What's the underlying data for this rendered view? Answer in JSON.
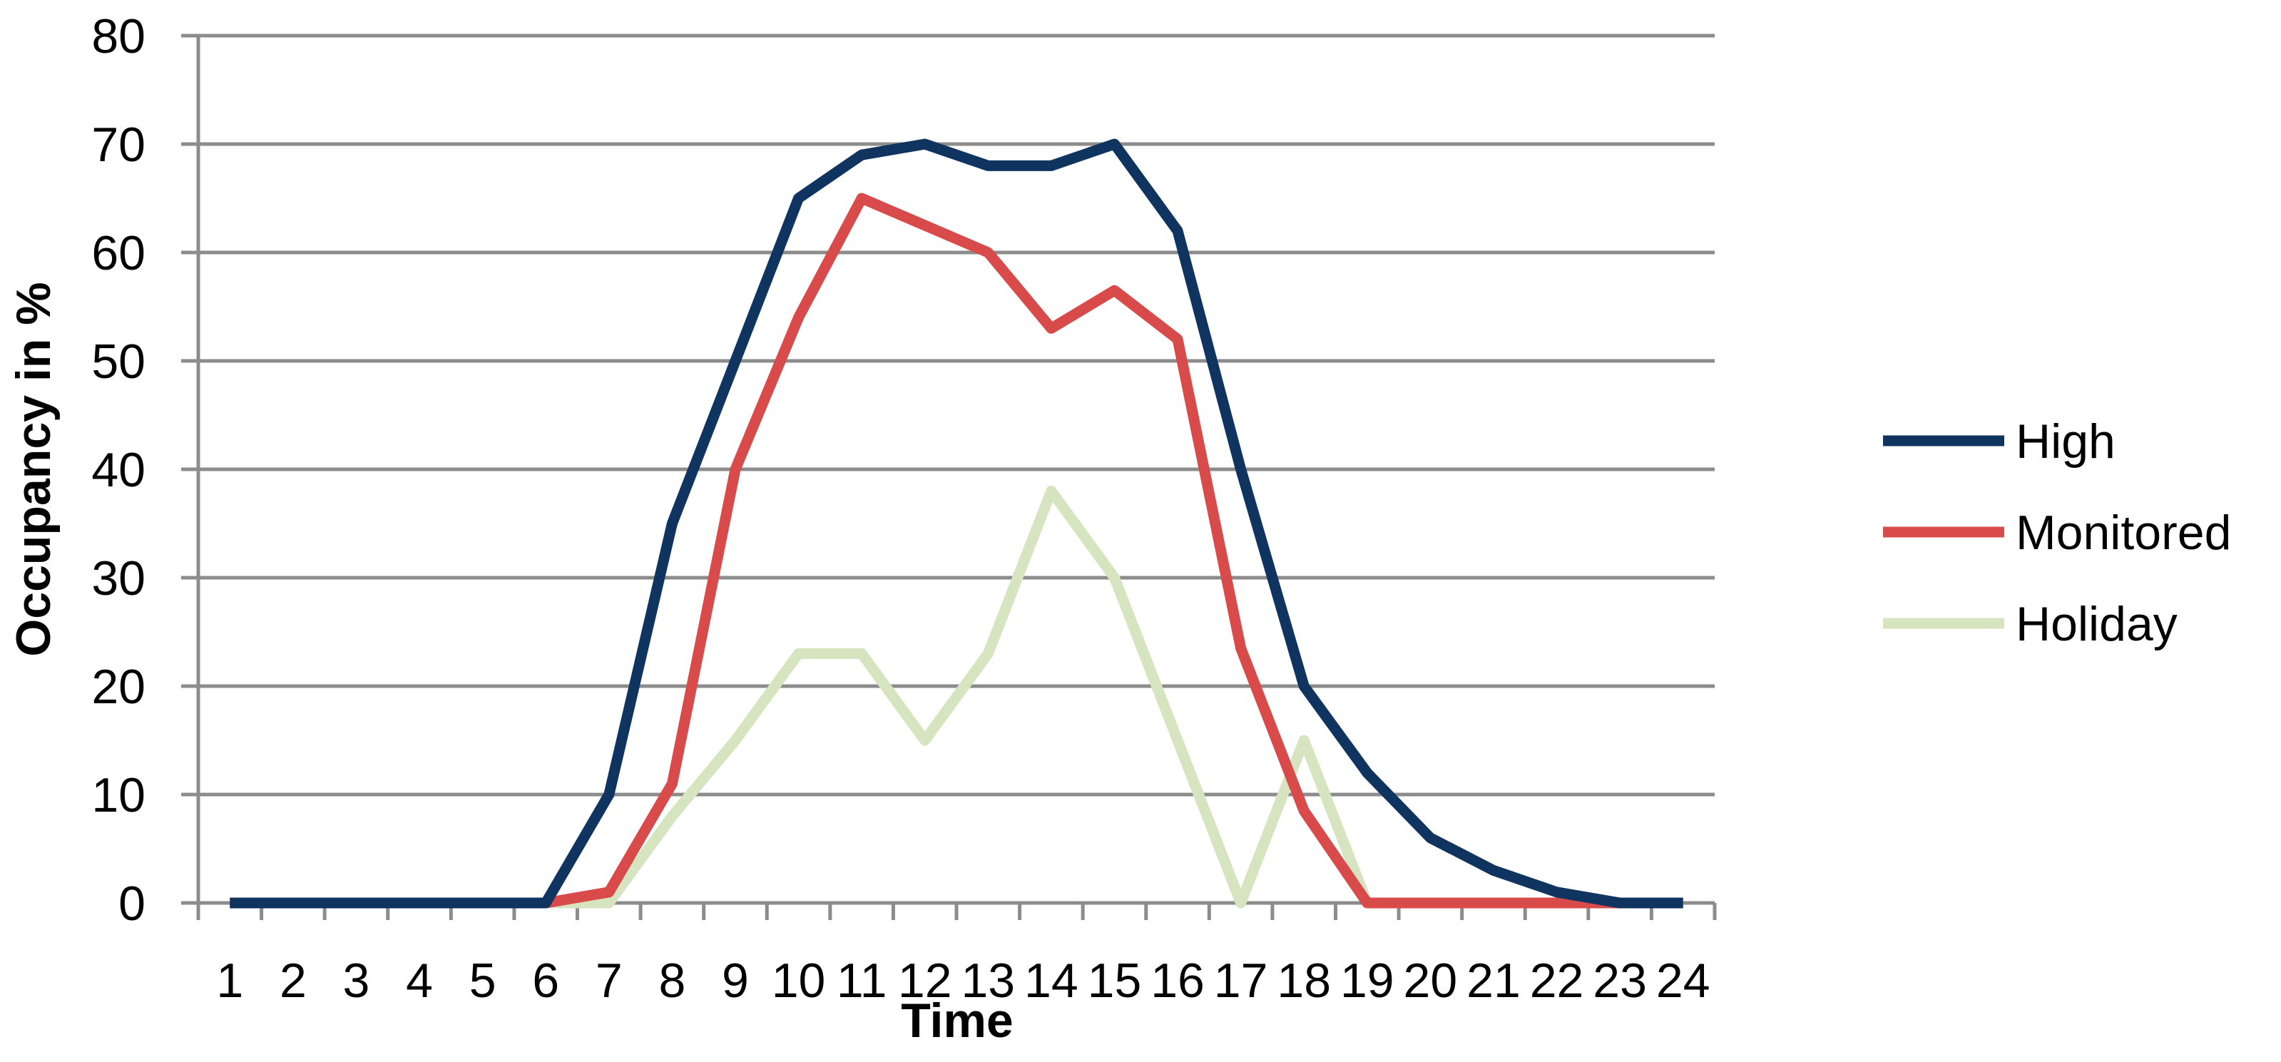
{
  "chart_data": {
    "type": "line",
    "title": "",
    "xlabel": "Time",
    "ylabel": "Occupancy in %",
    "x": [
      "1",
      "2",
      "3",
      "4",
      "5",
      "6",
      "7",
      "8",
      "9",
      "10",
      "11",
      "12",
      "13",
      "14",
      "15",
      "16",
      "17",
      "18",
      "19",
      "20",
      "21",
      "22",
      "23",
      "24"
    ],
    "ylim": [
      0,
      80
    ],
    "yticks": [
      0,
      10,
      20,
      30,
      40,
      50,
      60,
      70,
      80
    ],
    "grid": true,
    "legend_position": "right",
    "series": [
      {
        "name": "High",
        "color": "#0f3460",
        "values": [
          0,
          0,
          0,
          0,
          0,
          0,
          10,
          35,
          50,
          65,
          69,
          70,
          68,
          68,
          70,
          62,
          40,
          20,
          12,
          6,
          3,
          1,
          0,
          0
        ]
      },
      {
        "name": "Monitored",
        "color": "#d94a4a",
        "values": [
          0,
          0,
          0,
          0,
          0,
          0,
          1,
          11,
          40,
          54,
          65,
          62.5,
          60,
          53,
          56.5,
          52,
          23.5,
          8.5,
          0,
          0,
          0,
          0,
          0,
          0
        ]
      },
      {
        "name": "Holiday",
        "color": "#d6e5c0",
        "values": [
          0,
          0,
          0,
          0,
          0,
          0,
          0,
          8,
          15,
          23,
          23,
          15,
          23,
          38,
          30,
          15,
          0,
          15,
          0,
          0,
          0,
          0,
          0,
          0
        ]
      }
    ]
  }
}
